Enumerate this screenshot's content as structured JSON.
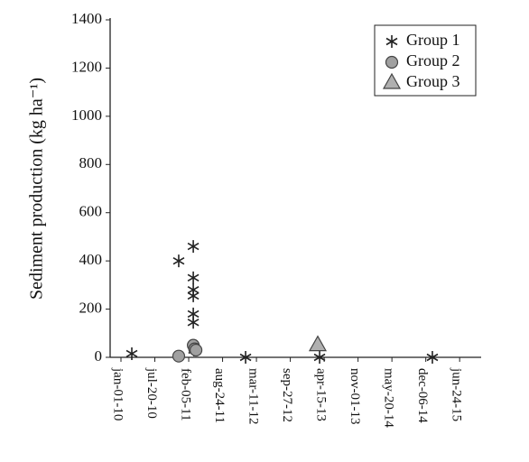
{
  "chart_data": {
    "type": "scatter",
    "ylabel": "Sediment production (kg ha⁻¹)",
    "xlim": [
      "2009-10-29",
      "2015-10-29"
    ],
    "xticks": [
      {
        "value": "2010-01-01",
        "label": "jan-01-10"
      },
      {
        "value": "2010-07-20",
        "label": "jul-20-10"
      },
      {
        "value": "2011-02-05",
        "label": "feb-05-11"
      },
      {
        "value": "2011-08-24",
        "label": "aug-24-11"
      },
      {
        "value": "2012-03-11",
        "label": "mar-11-12"
      },
      {
        "value": "2012-09-27",
        "label": "sep-27-12"
      },
      {
        "value": "2013-04-15",
        "label": "apr-15-13"
      },
      {
        "value": "2013-11-01",
        "label": "nov-01-13"
      },
      {
        "value": "2014-05-20",
        "label": "may-20-14"
      },
      {
        "value": "2014-12-06",
        "label": "dec-06-14"
      },
      {
        "value": "2015-06-24",
        "label": "jun-24-15"
      }
    ],
    "ylim": [
      0,
      1400
    ],
    "yticks": [
      0,
      200,
      400,
      600,
      800,
      1000,
      1200,
      1400
    ],
    "legend": "upper right",
    "series": [
      {
        "name": "Group 1",
        "marker": "star",
        "color": "#222222",
        "x": [
          "2010-03-06",
          "2010-12-08",
          "2011-03-04",
          "2011-03-04",
          "2011-03-04",
          "2011-03-04",
          "2011-03-04",
          "2011-03-04",
          "2011-03-08",
          "2012-01-07",
          "2013-03-19",
          "2015-01-14"
        ],
        "values": [
          15,
          400,
          460,
          330,
          280,
          255,
          180,
          145,
          30,
          0,
          0,
          0
        ]
      },
      {
        "name": "Group 2",
        "marker": "circle",
        "color": "#a0a0a0",
        "x": [
          "2010-12-08",
          "2011-03-04",
          "2011-03-12",
          "2011-03-20"
        ],
        "values": [
          5,
          50,
          35,
          30
        ]
      },
      {
        "name": "Group 3",
        "marker": "triangle",
        "color": "#b0b0b0",
        "x": [
          "2013-03-08"
        ],
        "values": [
          50
        ]
      }
    ]
  }
}
